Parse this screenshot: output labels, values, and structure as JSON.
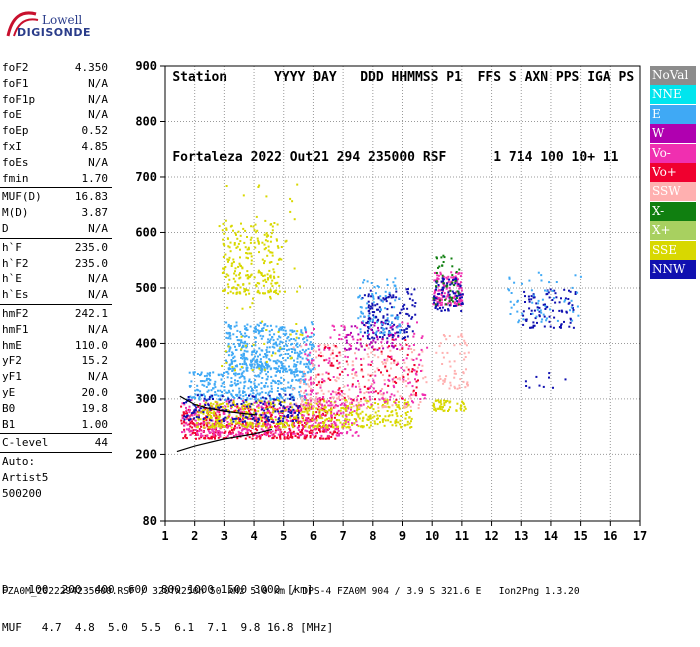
{
  "logo": {
    "line1": "Lowell",
    "line2": "DIGISONDE"
  },
  "header": {
    "labels": [
      "Station",
      "YYYY",
      "DAY",
      "DDD",
      "HHMMSS",
      "P1",
      "FFS",
      "S",
      "AXN",
      "PPS",
      "IGA",
      "PS"
    ],
    "values": [
      "Fortaleza",
      "2022",
      "Out21",
      "294",
      "235000",
      "RSF",
      "",
      "1",
      "714",
      "100",
      "10+",
      "11"
    ]
  },
  "params_groups": [
    [
      {
        "label": "foF2",
        "value": "4.350"
      },
      {
        "label": "foF1",
        "value": "N/A"
      },
      {
        "label": "foF1p",
        "value": "N/A"
      },
      {
        "label": "foE",
        "value": "N/A"
      },
      {
        "label": "foEp",
        "value": "0.52"
      },
      {
        "label": "fxI",
        "value": "4.85"
      },
      {
        "label": "foEs",
        "value": "N/A"
      },
      {
        "label": "fmin",
        "value": "1.70"
      }
    ],
    [
      {
        "label": "MUF(D)",
        "value": "16.83"
      },
      {
        "label": "M(D)",
        "value": "3.87"
      },
      {
        "label": "D",
        "value": "N/A"
      }
    ],
    [
      {
        "label": "h`F",
        "value": "235.0"
      },
      {
        "label": "h`F2",
        "value": "235.0"
      },
      {
        "label": "h`E",
        "value": "N/A"
      },
      {
        "label": "h`Es",
        "value": "N/A"
      }
    ],
    [
      {
        "label": "hmF2",
        "value": "242.1"
      },
      {
        "label": "hmF1",
        "value": "N/A"
      },
      {
        "label": "hmE",
        "value": "110.0"
      },
      {
        "label": "yF2",
        "value": "15.2"
      },
      {
        "label": "yF1",
        "value": "N/A"
      },
      {
        "label": "yE",
        "value": "20.0"
      },
      {
        "label": "B0",
        "value": "19.8"
      },
      {
        "label": "B1",
        "value": "1.00"
      }
    ],
    [
      {
        "label": "C-level",
        "value": "44"
      }
    ]
  ],
  "auto": {
    "line1": "Auto:",
    "line2": "Artist5",
    "line3": "500200"
  },
  "legend": [
    {
      "label": "NoVal",
      "color": "#8c8c8c"
    },
    {
      "label": "NNE",
      "color": "#00e5ee"
    },
    {
      "label": "E",
      "color": "#3fa9f5"
    },
    {
      "label": "W",
      "color": "#b000b0"
    },
    {
      "label": "Vo-",
      "color": "#f02fb0"
    },
    {
      "label": "Vo+",
      "color": "#f0002f"
    },
    {
      "label": "SSW",
      "color": "#ffb0b0"
    },
    {
      "label": "X-",
      "color": "#107f10"
    },
    {
      "label": "X+",
      "color": "#a8d060"
    },
    {
      "label": "SSE",
      "color": "#d8d800"
    },
    {
      "label": "NNW",
      "color": "#1010b0"
    }
  ],
  "chart_data": {
    "type": "scatter",
    "xlim": [
      1,
      17
    ],
    "ylim": [
      80,
      900
    ],
    "xticks": [
      1,
      2,
      3,
      4,
      5,
      6,
      7,
      8,
      9,
      10,
      11,
      12,
      13,
      14,
      15,
      16,
      17
    ],
    "yticks": [
      80,
      200,
      300,
      400,
      500,
      600,
      700,
      800,
      900
    ],
    "grid": true,
    "clusters": [
      {
        "color": "#f0002f",
        "x": [
          1.5,
          6.8
        ],
        "y": [
          230,
          290
        ],
        "n": 520
      },
      {
        "color": "#f02fb0",
        "x": [
          1.5,
          7.5
        ],
        "y": [
          235,
          300
        ],
        "n": 420
      },
      {
        "color": "#d8d800",
        "x": [
          2.0,
          9.3
        ],
        "y": [
          250,
          300
        ],
        "n": 520
      },
      {
        "color": "#3fa9f5",
        "x": [
          1.7,
          5.8
        ],
        "y": [
          300,
          350
        ],
        "n": 300
      },
      {
        "color": "#3fa9f5",
        "x": [
          3.0,
          6.0
        ],
        "y": [
          350,
          440
        ],
        "n": 460
      },
      {
        "color": "#1010b0",
        "x": [
          1.6,
          5.5
        ],
        "y": [
          260,
          310
        ],
        "n": 170
      },
      {
        "color": "#d8d800",
        "x": [
          2.9,
          4.9
        ],
        "y": [
          490,
          620
        ],
        "n": 230
      },
      {
        "color": "#d8d800",
        "x": [
          2.8,
          5.6
        ],
        "y": [
          350,
          690
        ],
        "n": 70
      },
      {
        "color": "#ffb0b0",
        "x": [
          5.2,
          9.8
        ],
        "y": [
          285,
          400
        ],
        "n": 230
      },
      {
        "color": "#f02fb0",
        "x": [
          5.6,
          9.8
        ],
        "y": [
          290,
          440
        ],
        "n": 210
      },
      {
        "color": "#f0002f",
        "x": [
          6.0,
          9.5
        ],
        "y": [
          300,
          410
        ],
        "n": 90
      },
      {
        "color": "#1010b0",
        "x": [
          7.6,
          9.4
        ],
        "y": [
          410,
          500
        ],
        "n": 150
      },
      {
        "color": "#b000b0",
        "x": [
          7.0,
          8.8
        ],
        "y": [
          390,
          440
        ],
        "n": 60
      },
      {
        "color": "#3fa9f5",
        "x": [
          7.4,
          8.9
        ],
        "y": [
          420,
          520
        ],
        "n": 90
      },
      {
        "color": "#f02fb0",
        "x": [
          10.0,
          11.0
        ],
        "y": [
          470,
          530
        ],
        "n": 140
      },
      {
        "color": "#1010b0",
        "x": [
          10.0,
          11.0
        ],
        "y": [
          460,
          520
        ],
        "n": 80
      },
      {
        "color": "#107f10",
        "x": [
          10.0,
          10.9
        ],
        "y": [
          470,
          560
        ],
        "n": 40
      },
      {
        "color": "#d8d800",
        "x": [
          10.0,
          11.1
        ],
        "y": [
          280,
          300
        ],
        "n": 50
      },
      {
        "color": "#ffb0b0",
        "x": [
          10.1,
          11.2
        ],
        "y": [
          320,
          420
        ],
        "n": 60
      },
      {
        "color": "#1010b0",
        "x": [
          13.0,
          14.8
        ],
        "y": [
          430,
          500
        ],
        "n": 90
      },
      {
        "color": "#3fa9f5",
        "x": [
          12.5,
          15.0
        ],
        "y": [
          440,
          530
        ],
        "n": 60
      },
      {
        "color": "#1010b0",
        "x": [
          13.0,
          14.6
        ],
        "y": [
          320,
          350
        ],
        "n": 10
      }
    ],
    "traces": [
      {
        "color": "#000000",
        "points": [
          [
            1.4,
            205
          ],
          [
            2.0,
            215
          ],
          [
            3.0,
            228
          ],
          [
            4.0,
            237
          ],
          [
            4.6,
            245
          ]
        ]
      },
      {
        "color": "#000000",
        "points": [
          [
            1.5,
            305
          ],
          [
            2.0,
            290
          ],
          [
            2.4,
            284
          ],
          [
            3.0,
            278
          ],
          [
            3.6,
            274
          ],
          [
            4.1,
            271
          ]
        ]
      }
    ]
  },
  "footer": {
    "d_label": "D",
    "d_values": [
      "100",
      "200",
      "400",
      "600",
      "800",
      "1000",
      "1500",
      "3000"
    ],
    "d_unit": "[km]",
    "muf_label": "MUF",
    "muf_values": [
      "4.7",
      "4.8",
      "5.0",
      "5.5",
      "6.1",
      "7.1",
      "9.8",
      "16.8"
    ],
    "muf_unit": "[MHz]",
    "info": "FZA0M_2022294235000.RSF / 320fx256h 50 kHz 5.0 km / DPS-4 FZA0M 904 / 3.9 S 321.6 E   Ion2Png 1.3.20"
  }
}
